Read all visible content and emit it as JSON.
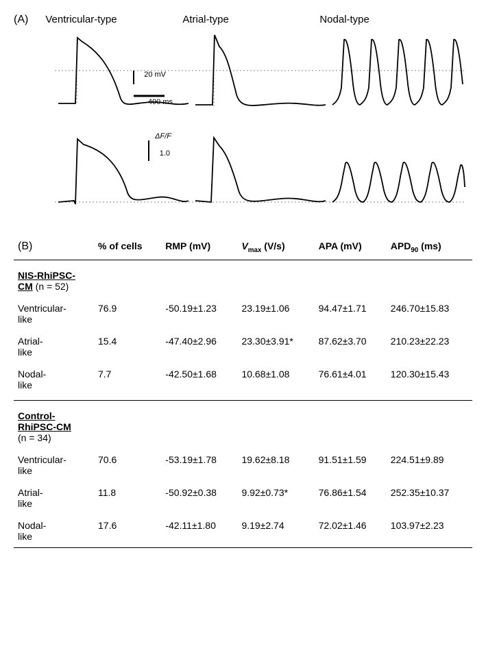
{
  "panelA": {
    "label": "(A)",
    "columns": [
      "Ventricular-type",
      "Atrial-type",
      "Nodal-type"
    ],
    "scale_mv": "20 mV",
    "scale_time": "400 ms",
    "scale_df_label": "ΔF/F",
    "scale_df_val": "1.0",
    "trace_color": "#000000",
    "dotted_color": "#666666",
    "background": "#ffffff"
  },
  "panelB": {
    "label": "(B)",
    "headers": [
      "% of cells",
      "RMP (mV)",
      "Vmax (V/s)",
      "APA (mV)",
      "APD90 (ms)"
    ],
    "groups": [
      {
        "name_underlined": "NIS-RhiPSC-CM",
        "name_plain": " (n = 52)",
        "rows": [
          {
            "type": "Ventricular-like",
            "pct": "76.9",
            "rmp": "-50.19±1.23",
            "vmax": "23.19±1.06",
            "apa": "94.47±1.71",
            "apd90": "246.70±15.83"
          },
          {
            "type": "Atrial-like",
            "pct": "15.4",
            "rmp": "-47.40±2.96",
            "vmax": "23.30±3.91*",
            "apa": "87.62±3.70",
            "apd90": "210.23±22.23"
          },
          {
            "type": "Nodal-like",
            "pct": "7.7",
            "rmp": "-42.50±1.68",
            "vmax": "10.68±1.08",
            "apa": "76.61±4.01",
            "apd90": "120.30±15.43"
          }
        ]
      },
      {
        "name_underlined": "Control-RhiPSC-CM",
        "name_plain": " (n = 34)",
        "rows": [
          {
            "type": "Ventricular-like",
            "pct": "70.6",
            "rmp": "-53.19±1.78",
            "vmax": "19.62±8.18",
            "apa": "91.51±1.59",
            "apd90": "224.51±9.89"
          },
          {
            "type": "Atrial-like",
            "pct": "11.8",
            "rmp": "-50.92±0.38",
            "vmax": "9.92±0.73*",
            "apa": "76.86±1.54",
            "apd90": "252.35±10.37"
          },
          {
            "type": "Nodal-like",
            "pct": "17.6",
            "rmp": "-42.11±1.80",
            "vmax": "9.19±2.74",
            "apa": "72.02±1.46",
            "apd90": "103.97±2.23"
          }
        ]
      }
    ]
  }
}
